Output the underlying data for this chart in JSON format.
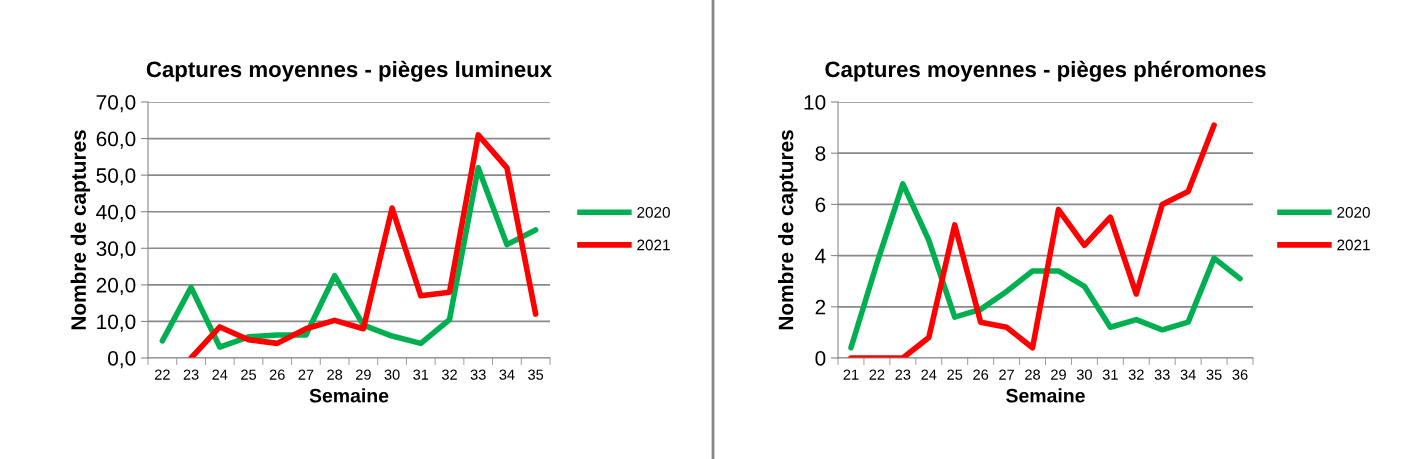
{
  "chart_data": [
    {
      "type": "line",
      "title": "Captures moyennes - pièges lumineux",
      "xlabel": "Semaine",
      "ylabel": "Nombre de captures",
      "categories": [
        "22",
        "23",
        "24",
        "25",
        "26",
        "27",
        "28",
        "29",
        "30",
        "31",
        "32",
        "33",
        "34",
        "35"
      ],
      "series": [
        {
          "name": "2020",
          "color": "#00b050",
          "values": [
            4.7,
            19.3,
            3,
            5.8,
            6.3,
            6.3,
            22.5,
            9,
            6,
            4,
            10.5,
            52,
            31,
            35
          ]
        },
        {
          "name": "2021",
          "color": "#ff0000",
          "values": [
            null,
            0,
            8.5,
            5,
            4,
            8,
            10.3,
            8,
            41,
            17,
            18,
            61,
            52,
            12
          ]
        }
      ],
      "ylim": [
        0,
        70
      ],
      "yticks": [
        {
          "value": 0,
          "label": "0,0"
        },
        {
          "value": 10,
          "label": "10,0"
        },
        {
          "value": 20,
          "label": "20,0"
        },
        {
          "value": 30,
          "label": "30,0"
        },
        {
          "value": 40,
          "label": "40,0"
        },
        {
          "value": 50,
          "label": "50,0"
        },
        {
          "value": 60,
          "label": "60,0"
        },
        {
          "value": 70,
          "label": "70,0"
        }
      ],
      "grid": "y",
      "legend": "right",
      "marker": "none",
      "line_style": "solid"
    },
    {
      "type": "line",
      "title": "Captures moyennes - pièges phéromones",
      "xlabel": "Semaine",
      "ylabel": "Nombre de captures",
      "categories": [
        "21",
        "22",
        "23",
        "24",
        "25",
        "26",
        "27",
        "28",
        "29",
        "30",
        "31",
        "32",
        "33",
        "34",
        "35",
        "36"
      ],
      "series": [
        {
          "name": "2020",
          "color": "#00b050",
          "values": [
            0.4,
            3.7,
            6.8,
            4.6,
            1.6,
            1.9,
            2.6,
            3.4,
            3.4,
            2.8,
            1.2,
            1.5,
            1.1,
            1.4,
            3.9,
            3.1
          ]
        },
        {
          "name": "2021",
          "color": "#ff0000",
          "values": [
            0,
            0,
            0,
            0.8,
            5.2,
            1.4,
            1.2,
            0.4,
            5.8,
            4.4,
            5.5,
            2.5,
            6,
            6.5,
            9.1,
            null
          ]
        }
      ],
      "ylim": [
        0,
        10
      ],
      "yticks": [
        0,
        2,
        4,
        6,
        8,
        10
      ],
      "grid": "y",
      "legend": "right",
      "marker": "none",
      "line_style": "solid"
    }
  ]
}
